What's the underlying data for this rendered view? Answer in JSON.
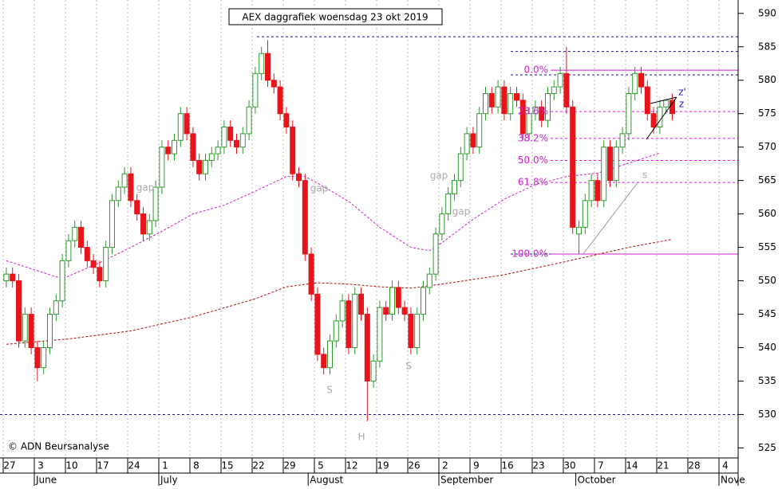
{
  "chart_data": {
    "type": "candlestick",
    "title": "AEX daggrafiek woensdag 23 okt 2019",
    "credit": "© ADN Beursanalyse",
    "up_color": "#2e9a2e",
    "down_color": "#e8141c",
    "open": [
      550,
      551,
      550,
      541,
      545,
      540,
      537,
      540,
      545,
      547,
      553,
      556,
      558,
      555,
      553,
      552,
      550,
      555,
      562,
      564,
      566,
      562,
      560,
      557,
      559,
      564,
      570,
      569,
      571,
      575,
      572,
      568,
      566,
      568,
      569,
      570,
      573,
      571,
      570,
      572,
      576,
      581,
      584,
      580,
      579,
      575,
      573,
      566,
      565,
      554,
      548,
      539,
      537,
      541,
      544,
      547,
      540,
      548,
      545,
      535,
      538,
      546,
      545,
      549,
      546,
      545,
      540,
      545,
      549,
      551,
      557,
      560,
      563,
      565,
      569,
      572,
      570,
      575,
      578,
      576,
      579,
      575,
      578,
      577,
      572,
      575,
      576,
      574,
      578,
      579,
      581,
      576,
      557,
      558,
      562,
      565,
      562,
      570,
      565,
      570,
      572,
      578,
      581,
      579,
      575,
      573,
      576,
      577
    ],
    "high": [
      552,
      552,
      551,
      546,
      546,
      541,
      541,
      546,
      548,
      554,
      557,
      559,
      559,
      556,
      554,
      553,
      556,
      563,
      565,
      567,
      567,
      563,
      561,
      560,
      565,
      571,
      571,
      572,
      576,
      576,
      573,
      569,
      569,
      570,
      571,
      574,
      574,
      572,
      573,
      577,
      582,
      585,
      586,
      581,
      580,
      576,
      574,
      567,
      566,
      555,
      549,
      540,
      542,
      545,
      548,
      548,
      549,
      549,
      546,
      539,
      547,
      547,
      550,
      550,
      547,
      546,
      546,
      550,
      552,
      558,
      561,
      564,
      566,
      570,
      573,
      573,
      576,
      579,
      579,
      580,
      580,
      579,
      579,
      578,
      576,
      577,
      577,
      579,
      580,
      582,
      585,
      577,
      559,
      563,
      566,
      566,
      571,
      571,
      571,
      573,
      579,
      582,
      582,
      580,
      576,
      577,
      577,
      578
    ],
    "low": [
      549,
      549,
      540,
      540,
      539,
      535,
      536,
      539,
      544,
      546,
      552,
      555,
      554,
      552,
      551,
      549,
      549,
      554,
      561,
      563,
      561,
      559,
      556,
      556,
      558,
      563,
      568,
      568,
      570,
      571,
      567,
      565,
      565,
      567,
      568,
      569,
      570,
      569,
      569,
      571,
      575,
      580,
      579,
      578,
      574,
      572,
      565,
      564,
      553,
      547,
      538,
      536,
      536,
      540,
      543,
      539,
      539,
      544,
      529,
      534,
      537,
      544,
      544,
      545,
      544,
      539,
      539,
      544,
      548,
      550,
      556,
      559,
      562,
      564,
      568,
      569,
      569,
      574,
      575,
      575,
      574,
      574,
      576,
      571,
      571,
      574,
      573,
      573,
      577,
      578,
      575,
      557,
      554,
      557,
      561,
      561,
      561,
      564,
      564,
      569,
      571,
      577,
      578,
      574,
      572,
      572,
      575,
      574
    ],
    "close": [
      551,
      550,
      541,
      545,
      540,
      537,
      540,
      545,
      547,
      553,
      556,
      558,
      555,
      553,
      552,
      550,
      555,
      562,
      564,
      566,
      562,
      560,
      557,
      559,
      564,
      570,
      569,
      571,
      575,
      572,
      568,
      566,
      568,
      569,
      570,
      573,
      571,
      570,
      572,
      576,
      581,
      584,
      580,
      579,
      575,
      573,
      566,
      565,
      554,
      548,
      539,
      537,
      541,
      544,
      547,
      540,
      548,
      545,
      535,
      538,
      546,
      545,
      549,
      546,
      545,
      540,
      545,
      549,
      551,
      557,
      560,
      563,
      565,
      569,
      572,
      570,
      575,
      578,
      576,
      579,
      575,
      578,
      577,
      572,
      575,
      576,
      574,
      578,
      579,
      581,
      576,
      558,
      558,
      562,
      565,
      562,
      570,
      565,
      570,
      572,
      578,
      581,
      579,
      575,
      573,
      576,
      577,
      575
    ],
    "moving_averages": [
      {
        "color": "#d020d0",
        "x": [
          0,
          9,
          15,
          20,
          25,
          30,
          35,
          40,
          45,
          48,
          50,
          55,
          60,
          65,
          68,
          70,
          75,
          80,
          85,
          90,
          95,
          100,
          105
        ],
        "values": [
          553,
          550.3,
          552.7,
          555,
          557.4,
          560,
          561.3,
          563.4,
          565.6,
          565.6,
          564.6,
          561.9,
          558,
          555,
          554.5,
          555.7,
          559.2,
          562.2,
          564.4,
          565.6,
          566.1,
          567.6,
          569.1
        ]
      },
      {
        "color": "#b01010",
        "x": [
          0,
          10,
          20,
          30,
          40,
          45,
          50,
          55,
          60,
          65,
          70,
          80,
          90,
          100,
          107
        ],
        "values": [
          540.5,
          541.3,
          542.5,
          544.6,
          547.3,
          549.1,
          549.7,
          549.5,
          549.1,
          548.9,
          549.5,
          550.9,
          552.9,
          555,
          556.2
        ]
      }
    ],
    "levels": [
      586.5,
      584.3,
      580.8,
      554,
      530
    ],
    "fib_levels": [
      {
        "label": "0.0%",
        "price": 581.5
      },
      {
        "label": "23.6%",
        "price": 575.3
      },
      {
        "label": "38.2%",
        "price": 571.3
      },
      {
        "label": "50.0%",
        "price": 568
      },
      {
        "label": "61.8%",
        "price": 564.7
      },
      {
        "label": "100.0%",
        "price": 554
      }
    ],
    "annotations": [
      "gap",
      "gap",
      "gap",
      "gap",
      "S",
      "H",
      "S",
      "s",
      "z'",
      "z"
    ],
    "ylim": [
      523.5,
      592
    ],
    "yticks": [
      525,
      530,
      535,
      540,
      545,
      550,
      555,
      560,
      565,
      570,
      575,
      580,
      585,
      590
    ],
    "xticks": [
      {
        "value": 0,
        "label": "27"
      },
      {
        "value": 5,
        "label": "3"
      },
      {
        "value": 10,
        "label": "10"
      },
      {
        "value": 15,
        "label": "17"
      },
      {
        "value": 20,
        "label": "24"
      },
      {
        "value": 25,
        "label": "1"
      },
      {
        "value": 30,
        "label": "8"
      },
      {
        "value": 35,
        "label": "15"
      },
      {
        "value": 40,
        "label": "22"
      },
      {
        "value": 45,
        "label": "29"
      },
      {
        "value": 50,
        "label": "5"
      },
      {
        "value": 55,
        "label": "12"
      },
      {
        "value": 60,
        "label": "19"
      },
      {
        "value": 65,
        "label": "26"
      },
      {
        "value": 70,
        "label": "2"
      },
      {
        "value": 75,
        "label": "9"
      },
      {
        "value": 80,
        "label": "16"
      },
      {
        "value": 85,
        "label": "23"
      },
      {
        "value": 90,
        "label": "30"
      },
      {
        "value": 95,
        "label": "7"
      },
      {
        "value": 100,
        "label": "14"
      },
      {
        "value": 105,
        "label": "21"
      },
      {
        "value": 110,
        "label": "28"
      },
      {
        "value": 115,
        "label": "4"
      }
    ],
    "month_ticks": [
      {
        "value": 5,
        "label": "June"
      },
      {
        "value": 25,
        "label": "July"
      },
      {
        "value": 49,
        "label": "August"
      },
      {
        "value": 70,
        "label": "September"
      },
      {
        "value": 92,
        "label": "October"
      },
      {
        "value": 115,
        "label": "Nove"
      }
    ]
  }
}
